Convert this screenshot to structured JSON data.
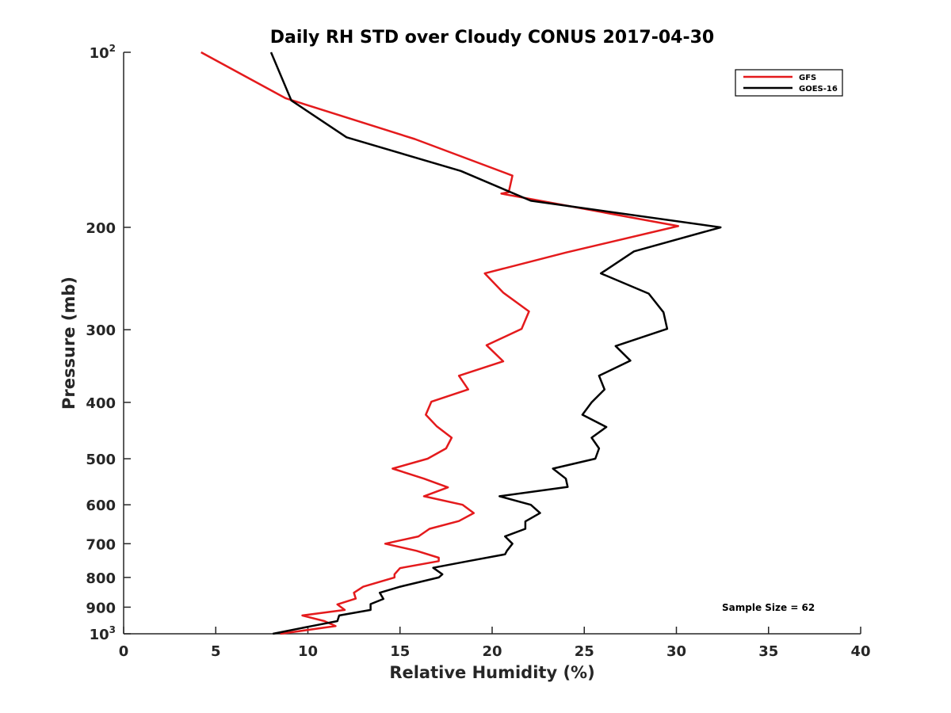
{
  "chart_data": {
    "type": "line",
    "title": "Daily RH STD over Cloudy CONUS 2017-04-30",
    "xlabel": "Relative Humidity (%)",
    "ylabel": "Pressure (mb)",
    "xlim": [
      0,
      40
    ],
    "ylim": [
      100,
      1000
    ],
    "y_scale": "log",
    "y_reversed": true,
    "x_ticks": [
      "0",
      "5",
      "10",
      "15",
      "20",
      "25",
      "30",
      "35",
      "40"
    ],
    "y_ticks": [
      {
        "value": 100,
        "base": "10",
        "exp": "2"
      },
      {
        "value": 200,
        "label": "200"
      },
      {
        "value": 300,
        "label": "300"
      },
      {
        "value": 400,
        "label": "400"
      },
      {
        "value": 500,
        "label": "500"
      },
      {
        "value": 600,
        "label": "600"
      },
      {
        "value": 700,
        "label": "700"
      },
      {
        "value": 800,
        "label": "800"
      },
      {
        "value": 900,
        "label": "900"
      },
      {
        "value": 1000,
        "base": "10",
        "exp": "3"
      }
    ],
    "legend_position": "top-right",
    "grid": false,
    "series": [
      {
        "name": "GFS",
        "color": "#e41a1c",
        "points": [
          [
            4.2,
            100
          ],
          [
            8.8,
            120
          ],
          [
            15.8,
            141
          ],
          [
            21.1,
            163
          ],
          [
            20.9,
            174
          ],
          [
            20.5,
            175
          ],
          [
            30.1,
            199
          ],
          [
            24.0,
            221
          ],
          [
            19.6,
            240
          ],
          [
            20.6,
            259
          ],
          [
            22.0,
            279
          ],
          [
            21.6,
            299
          ],
          [
            19.7,
            319
          ],
          [
            20.6,
            340
          ],
          [
            18.2,
            360
          ],
          [
            18.7,
            380
          ],
          [
            16.7,
            399
          ],
          [
            16.4,
            420
          ],
          [
            17.0,
            440
          ],
          [
            17.8,
            460
          ],
          [
            17.5,
            480
          ],
          [
            16.5,
            500
          ],
          [
            14.6,
            520
          ],
          [
            16.3,
            541
          ],
          [
            17.6,
            560
          ],
          [
            16.3,
            580
          ],
          [
            18.4,
            600
          ],
          [
            19.0,
            620
          ],
          [
            18.2,
            640
          ],
          [
            16.6,
            660
          ],
          [
            16.0,
            680
          ],
          [
            14.2,
            700
          ],
          [
            15.9,
            720
          ],
          [
            17.1,
            740
          ],
          [
            17.1,
            750
          ],
          [
            15.0,
            771
          ],
          [
            14.7,
            790
          ],
          [
            14.7,
            800
          ],
          [
            13.0,
            830
          ],
          [
            12.5,
            850
          ],
          [
            12.6,
            870
          ],
          [
            11.6,
            890
          ],
          [
            12.0,
            910
          ],
          [
            9.7,
            930
          ],
          [
            10.9,
            951
          ],
          [
            11.5,
            970
          ],
          [
            8.5,
            1000
          ]
        ]
      },
      {
        "name": "GOES-16",
        "color": "#000000",
        "points": [
          [
            8.0,
            100
          ],
          [
            9.1,
            121
          ],
          [
            12.1,
            140
          ],
          [
            18.3,
            160
          ],
          [
            22.1,
            180
          ],
          [
            32.4,
            200
          ],
          [
            27.7,
            220
          ],
          [
            25.9,
            240
          ],
          [
            28.5,
            260
          ],
          [
            29.3,
            280
          ],
          [
            29.5,
            299
          ],
          [
            26.7,
            320
          ],
          [
            27.5,
            339
          ],
          [
            25.8,
            360
          ],
          [
            26.1,
            380
          ],
          [
            25.4,
            400
          ],
          [
            24.9,
            420
          ],
          [
            26.2,
            441
          ],
          [
            25.4,
            460
          ],
          [
            25.8,
            480
          ],
          [
            25.6,
            500
          ],
          [
            23.3,
            520
          ],
          [
            24.0,
            541
          ],
          [
            24.1,
            559
          ],
          [
            20.4,
            580
          ],
          [
            22.1,
            600
          ],
          [
            22.6,
            620
          ],
          [
            21.8,
            641
          ],
          [
            21.8,
            660
          ],
          [
            20.7,
            680
          ],
          [
            21.1,
            700
          ],
          [
            20.8,
            720
          ],
          [
            20.7,
            730
          ],
          [
            18.7,
            750
          ],
          [
            16.8,
            770
          ],
          [
            17.3,
            790
          ],
          [
            17.1,
            800
          ],
          [
            15.0,
            830
          ],
          [
            13.9,
            850
          ],
          [
            14.1,
            871
          ],
          [
            13.4,
            889
          ],
          [
            13.4,
            910
          ],
          [
            11.7,
            930
          ],
          [
            11.6,
            951
          ],
          [
            10.2,
            970
          ],
          [
            8.1,
            1000
          ]
        ]
      }
    ],
    "annotations": [
      "Sample Size = 62"
    ]
  }
}
